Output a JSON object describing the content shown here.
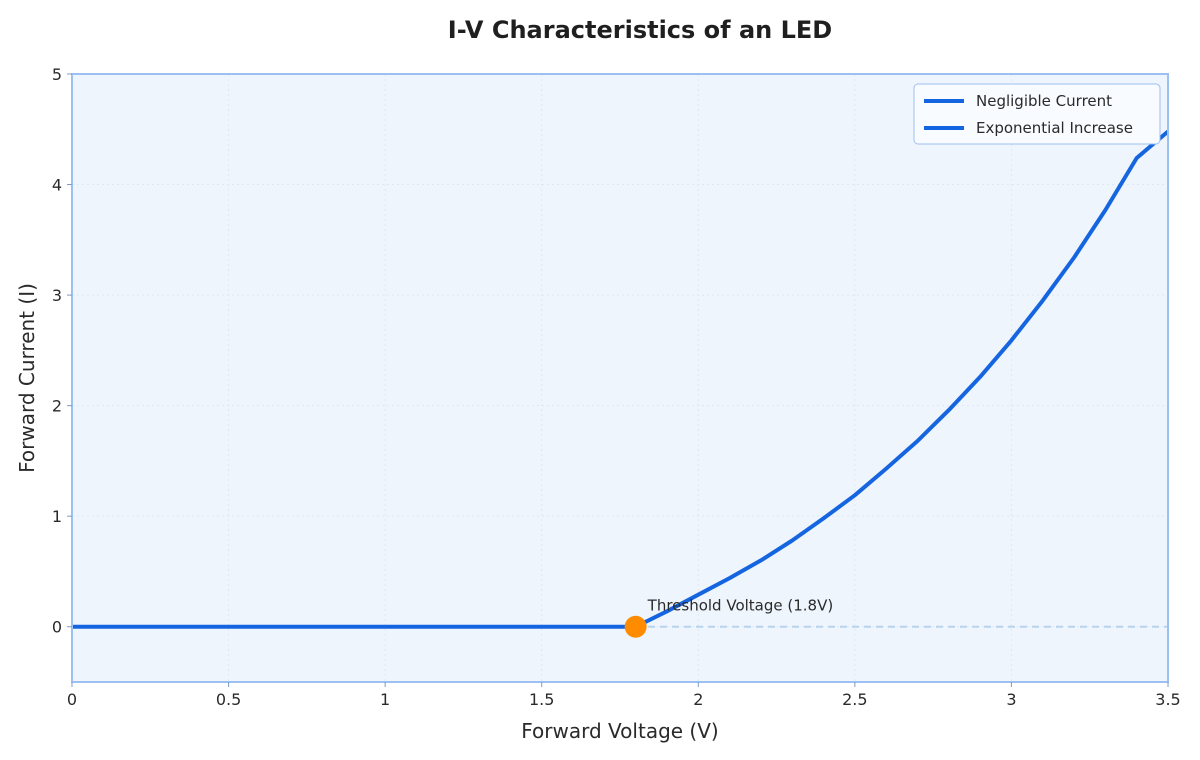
{
  "chart_data": {
    "type": "line",
    "title": "I-V Characteristics of an LED",
    "xlabel": "Forward Voltage (V)",
    "ylabel": "Forward Current (I)",
    "xlim": [
      0,
      3.5
    ],
    "ylim": [
      -0.5,
      5
    ],
    "x_ticks": [
      0,
      0.5,
      1,
      1.5,
      2,
      2.5,
      3,
      3.5
    ],
    "x_tick_labels": [
      "0",
      "0.5",
      "1",
      "1.5",
      "2",
      "2.5",
      "3",
      "3.5"
    ],
    "y_ticks": [
      0,
      1,
      2,
      3,
      4,
      5
    ],
    "y_tick_labels": [
      "0",
      "1",
      "2",
      "3",
      "4",
      "5"
    ],
    "grid": true,
    "legend_position": "top-right",
    "series": [
      {
        "name": "Negligible Current",
        "color": "#1565e0",
        "x": [
          0,
          1.8
        ],
        "y": [
          0,
          0
        ]
      },
      {
        "name": "Exponential Increase",
        "color": "#1565e0",
        "x": [
          1.8,
          1.9,
          2.0,
          2.1,
          2.2,
          2.3,
          2.4,
          2.5,
          2.6,
          2.7,
          2.8,
          2.9,
          3.0,
          3.1,
          3.2,
          3.3,
          3.4,
          3.5
        ],
        "y": [
          0,
          0.14,
          0.29,
          0.44,
          0.6,
          0.78,
          0.98,
          1.19,
          1.43,
          1.68,
          1.96,
          2.26,
          2.59,
          2.95,
          3.34,
          3.77,
          4.24,
          4.48
        ]
      }
    ],
    "reference_line": {
      "y": 0,
      "color": "#b8d4ec",
      "style": "dashed"
    },
    "threshold_point": {
      "x": 1.8,
      "y": 0,
      "color": "#ff8c00"
    },
    "annotations": [
      {
        "text": "Threshold Voltage (1.8V)",
        "x": 1.8,
        "y": 0
      }
    ],
    "colors": {
      "plot_background": "#eef5fd",
      "frame": "#9dc0f2",
      "grid": "#dde8f5"
    }
  }
}
